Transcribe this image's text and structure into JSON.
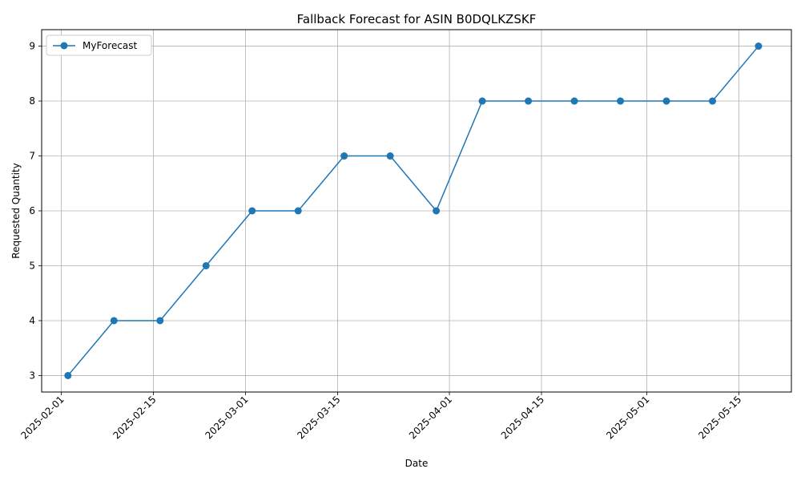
{
  "chart_data": {
    "type": "line",
    "title": "Fallback Forecast for ASIN B0DQLKZSKF",
    "xlabel": "Date",
    "ylabel": "Requested Quantity",
    "x_ticks": [
      "2025-02-01",
      "2025-02-15",
      "2025-03-01",
      "2025-03-15",
      "2025-04-01",
      "2025-04-15",
      "2025-05-01",
      "2025-05-15"
    ],
    "y_ticks": [
      3,
      4,
      5,
      6,
      7,
      8,
      9
    ],
    "xlim": [
      "2025-01-29",
      "2025-05-23"
    ],
    "ylim": [
      2.7,
      9.3
    ],
    "grid": true,
    "legend_position": "top-left",
    "series": [
      {
        "name": "MyForecast",
        "color": "#1f77b4",
        "marker": "circle",
        "x": [
          "2025-02-02",
          "2025-02-09",
          "2025-02-16",
          "2025-02-23",
          "2025-03-02",
          "2025-03-09",
          "2025-03-16",
          "2025-03-23",
          "2025-03-30",
          "2025-04-06",
          "2025-04-13",
          "2025-04-20",
          "2025-04-27",
          "2025-05-04",
          "2025-05-11",
          "2025-05-18"
        ],
        "values": [
          3,
          4,
          4,
          5,
          6,
          6,
          7,
          7,
          6,
          8,
          8,
          8,
          8,
          8,
          8,
          9
        ]
      }
    ]
  }
}
